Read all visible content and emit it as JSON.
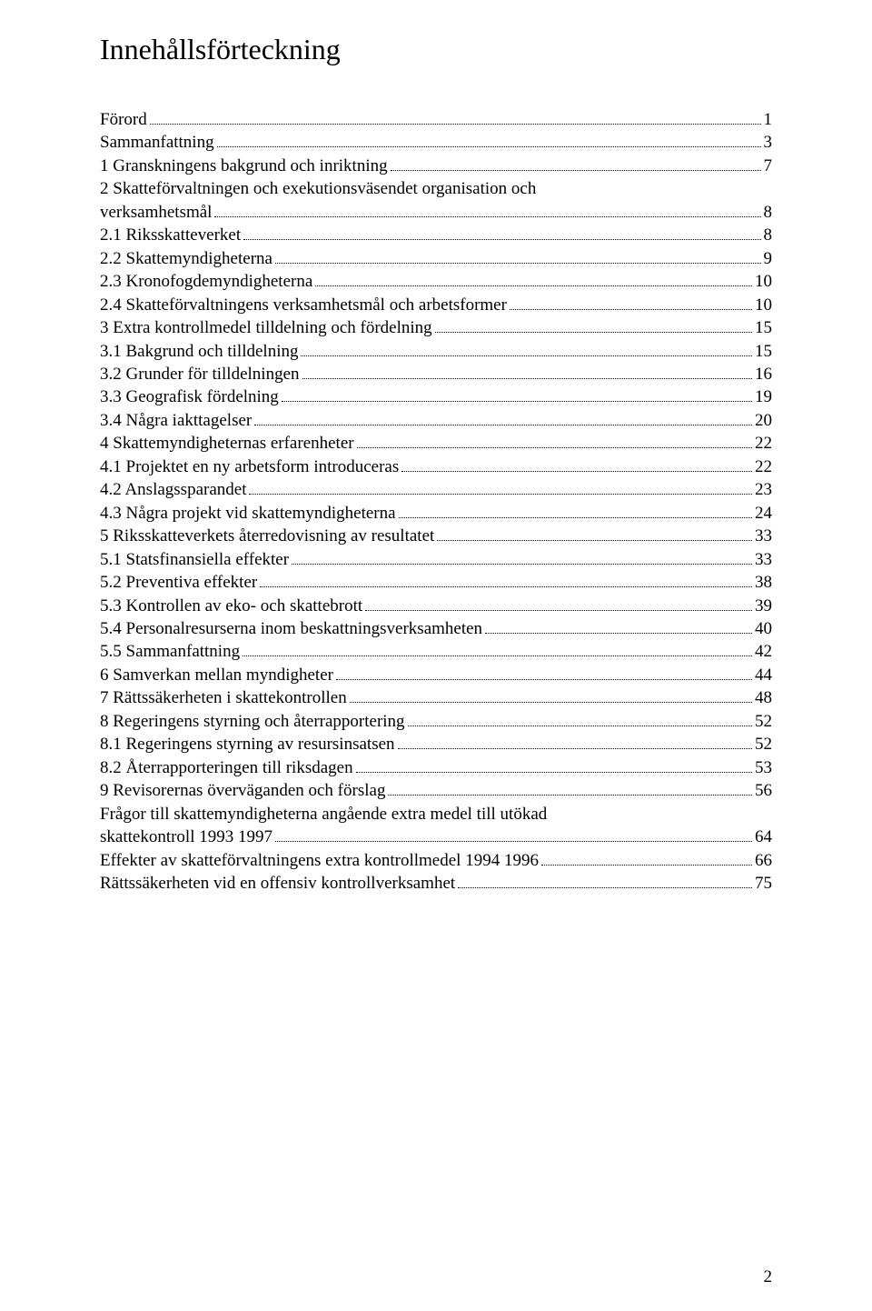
{
  "title": "Innehållsförteckning",
  "pageNumber": "2",
  "entries": [
    {
      "label": "Förord",
      "page": "1",
      "continuation": false
    },
    {
      "label": "Sammanfattning",
      "page": "3",
      "continuation": false
    },
    {
      "label": "1 Granskningens bakgrund och inriktning",
      "page": "7",
      "continuation": false
    },
    {
      "label": "2 Skatteförvaltningen och exekutionsväsendet organisation och",
      "page": "",
      "continuation": true
    },
    {
      "label": "verksamhetsmål",
      "page": "8",
      "continuation": false
    },
    {
      "label": "2.1 Riksskatteverket",
      "page": "8",
      "continuation": false
    },
    {
      "label": "2.2 Skattemyndigheterna",
      "page": "9",
      "continuation": false
    },
    {
      "label": "2.3 Kronofogdemyndigheterna",
      "page": "10",
      "continuation": false
    },
    {
      "label": "2.4 Skatteförvaltningens verksamhetsmål och arbetsformer",
      "page": "10",
      "continuation": false
    },
    {
      "label": "3 Extra kontrollmedel tilldelning och fördelning",
      "page": "15",
      "continuation": false
    },
    {
      "label": "3.1 Bakgrund och tilldelning",
      "page": "15",
      "continuation": false
    },
    {
      "label": "3.2 Grunder för tilldelningen",
      "page": "16",
      "continuation": false
    },
    {
      "label": "3.3 Geografisk fördelning",
      "page": "19",
      "continuation": false
    },
    {
      "label": "3.4 Några iakttagelser",
      "page": "20",
      "continuation": false
    },
    {
      "label": "4 Skattemyndigheternas erfarenheter",
      "page": "22",
      "continuation": false
    },
    {
      "label": "4.1 Projektet en ny arbetsform introduceras",
      "page": "22",
      "continuation": false
    },
    {
      "label": "4.2 Anslagssparandet",
      "page": "23",
      "continuation": false
    },
    {
      "label": "4.3 Några projekt vid skattemyndigheterna",
      "page": "24",
      "continuation": false
    },
    {
      "label": "5 Riksskatteverkets återredovisning av resultatet",
      "page": "33",
      "continuation": false
    },
    {
      "label": "5.1 Statsfinansiella effekter",
      "page": "33",
      "continuation": false
    },
    {
      "label": "5.2 Preventiva effekter",
      "page": "38",
      "continuation": false
    },
    {
      "label": "5.3 Kontrollen av eko- och skattebrott",
      "page": "39",
      "continuation": false
    },
    {
      "label": "5.4 Personalresurserna inom beskattningsverksamheten",
      "page": "40",
      "continuation": false
    },
    {
      "label": "5.5 Sammanfattning",
      "page": "42",
      "continuation": false
    },
    {
      "label": "6 Samverkan mellan myndigheter",
      "page": "44",
      "continuation": false
    },
    {
      "label": "7 Rättssäkerheten i skattekontrollen",
      "page": "48",
      "continuation": false
    },
    {
      "label": "8 Regeringens styrning och återrapportering",
      "page": "52",
      "continuation": false
    },
    {
      "label": "8.1 Regeringens styrning av resursinsatsen",
      "page": "52",
      "continuation": false
    },
    {
      "label": "8.2 Återrapporteringen till riksdagen",
      "page": "53",
      "continuation": false
    },
    {
      "label": "9 Revisorernas överväganden och förslag",
      "page": "56",
      "continuation": false
    },
    {
      "label": "Frågor till skattemyndigheterna angående extra medel till utökad",
      "page": "",
      "continuation": true
    },
    {
      "label": "skattekontroll 1993 1997",
      "page": "64",
      "continuation": false
    },
    {
      "label": "Effekter av skatteförvaltningens extra kontrollmedel 1994 1996",
      "page": "66",
      "continuation": false
    },
    {
      "label": "Rättssäkerheten vid en offensiv kontrollverksamhet",
      "page": "75",
      "continuation": false
    }
  ]
}
